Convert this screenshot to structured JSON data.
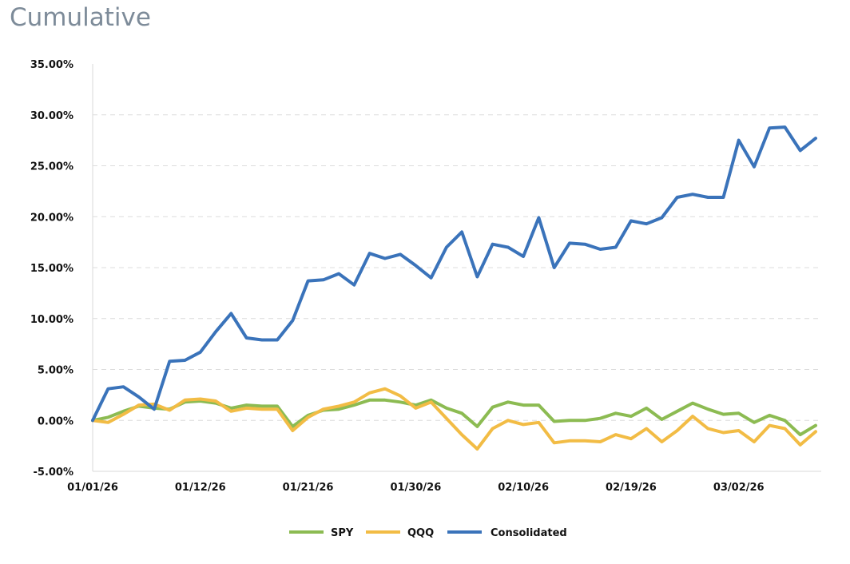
{
  "title": "Cumulative",
  "chart_data": {
    "type": "line",
    "title": "Cumulative",
    "ylim": [
      -5,
      35
    ],
    "y_ticks": [
      "35.00%",
      "30.00%",
      "25.00%",
      "20.00%",
      "15.00%",
      "10.00%",
      "5.00%",
      "0.00%",
      "-5.00%"
    ],
    "x_ticks": [
      "01/01/26",
      "01/12/26",
      "01/21/26",
      "01/30/26",
      "02/10/26",
      "02/19/26",
      "03/02/26"
    ],
    "x_tick_index": [
      0,
      7,
      14,
      21,
      28,
      35,
      42
    ],
    "grid": true,
    "legend_position": "bottom",
    "series": [
      {
        "name": "SPY",
        "color": "#8cbb52",
        "values": [
          0.0,
          0.3,
          0.9,
          1.4,
          1.2,
          1.1,
          1.8,
          1.9,
          1.7,
          1.2,
          1.5,
          1.4,
          1.4,
          -0.6,
          0.5,
          1.0,
          1.1,
          1.5,
          2.0,
          2.0,
          1.8,
          1.5,
          2.0,
          1.2,
          0.7,
          -0.6,
          1.3,
          1.8,
          1.5,
          1.5,
          -0.1,
          0.0,
          0.0,
          0.2,
          0.7,
          0.4,
          1.2,
          0.1,
          0.9,
          1.7,
          1.1,
          0.6,
          0.7,
          -0.2,
          0.5,
          0.0,
          -1.4,
          -0.5
        ]
      },
      {
        "name": "QQQ",
        "color": "#f2bc45",
        "values": [
          0.0,
          -0.2,
          0.6,
          1.5,
          1.6,
          1.0,
          2.0,
          2.1,
          1.9,
          0.9,
          1.2,
          1.1,
          1.1,
          -1.0,
          0.3,
          1.1,
          1.4,
          1.8,
          2.7,
          3.1,
          2.4,
          1.2,
          1.8,
          0.2,
          -1.4,
          -2.8,
          -0.8,
          0.0,
          -0.4,
          -0.2,
          -2.2,
          -2.0,
          -2.0,
          -2.1,
          -1.4,
          -1.8,
          -0.8,
          -2.1,
          -1.0,
          0.4,
          -0.8,
          -1.2,
          -1.0,
          -2.1,
          -0.5,
          -0.8,
          -2.4,
          -1.1
        ]
      },
      {
        "name": "Consolidated",
        "color": "#3a73ba",
        "values": [
          0.0,
          3.1,
          3.3,
          2.3,
          1.1,
          5.8,
          5.9,
          6.7,
          8.7,
          10.5,
          8.1,
          7.9,
          7.9,
          9.8,
          13.7,
          13.8,
          14.4,
          13.3,
          16.4,
          15.9,
          16.3,
          15.2,
          14.0,
          17.0,
          18.5,
          14.1,
          17.3,
          17.0,
          16.1,
          19.9,
          15.0,
          17.4,
          17.3,
          16.8,
          17.0,
          19.6,
          19.3,
          19.9,
          21.9,
          22.2,
          21.9,
          21.9,
          27.5,
          24.9,
          28.7,
          28.8,
          26.5,
          27.7
        ]
      }
    ]
  }
}
